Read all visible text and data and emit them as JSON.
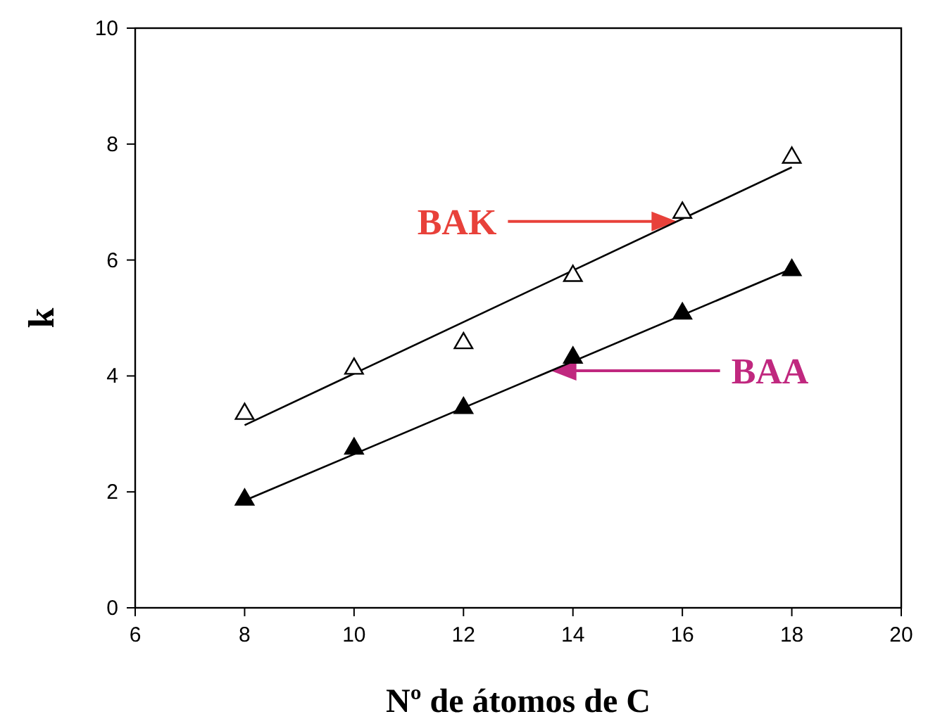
{
  "chart_data": {
    "type": "scatter",
    "xlabel": "Nº de átomos de C",
    "ylabel": "k",
    "xlim": [
      6,
      20
    ],
    "xticks": [
      6,
      8,
      10,
      12,
      14,
      16,
      18,
      20
    ],
    "ylim": [
      0,
      10
    ],
    "yticks": [
      0,
      2,
      4,
      6,
      8,
      10
    ],
    "grid": false,
    "marker": "triangle",
    "series": [
      {
        "color": "#ffffff",
        "x": [
          8,
          10,
          12,
          14,
          16,
          18
        ],
        "values": [
          3.37,
          4.15,
          4.59,
          5.75,
          6.84,
          7.79
        ]
      },
      {
        "color": "#000000",
        "x": [
          8,
          10,
          12,
          14,
          16,
          18
        ],
        "values": [
          1.89,
          2.77,
          3.47,
          4.34,
          5.1,
          5.85
        ]
      },
      {
        "type": "line",
        "name": "BAK",
        "color": "#000000",
        "marker": "none",
        "x": [
          8,
          18
        ],
        "values": [
          3.15,
          7.6
        ]
      },
      {
        "type": "line",
        "name": "BAA",
        "color": "#000000",
        "marker": "none",
        "x": [
          8,
          18
        ],
        "values": [
          1.85,
          5.85
        ]
      }
    ]
  }
}
